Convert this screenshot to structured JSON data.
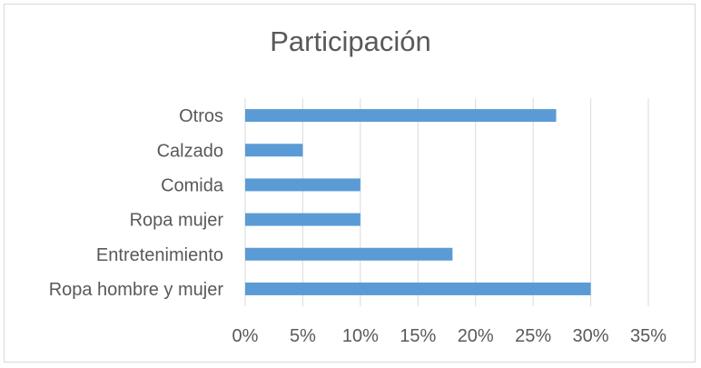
{
  "chart_data": {
    "type": "bar",
    "orientation": "horizontal",
    "title": "Participación",
    "categories": [
      "Ropa hombre y mujer",
      "Entretenimiento",
      "Ropa mujer",
      "Comida",
      "Calzado",
      "Otros"
    ],
    "values": [
      0.3,
      0.18,
      0.1,
      0.1,
      0.05,
      0.27
    ],
    "xlim": [
      0,
      0.35
    ],
    "xticks": [
      "0%",
      "5%",
      "10%",
      "15%",
      "20%",
      "25%",
      "30%",
      "35%"
    ],
    "xlabel": "",
    "ylabel": "",
    "grid": true,
    "legend": "none",
    "colors": {
      "bar": "#5b9bd5",
      "grid": "#d9d9d9",
      "text": "#595959"
    }
  }
}
